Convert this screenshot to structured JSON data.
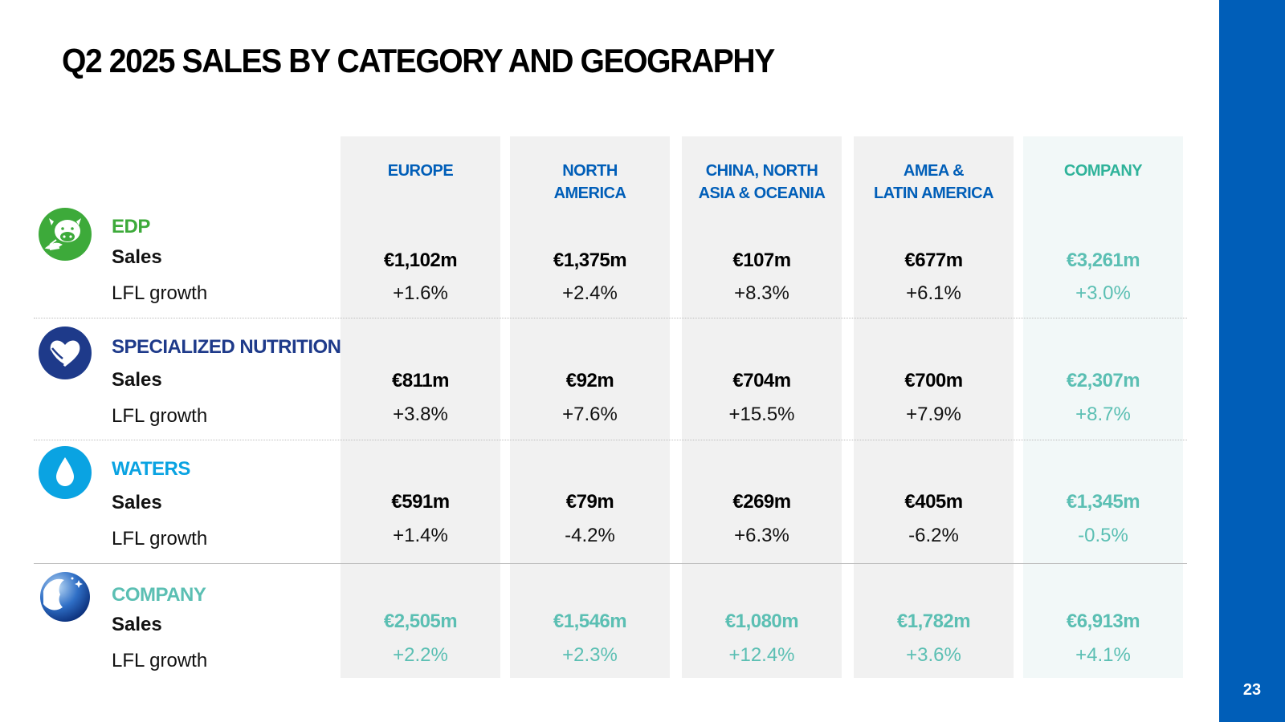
{
  "title": "Q2 2025 SALES BY CATEGORY AND GEOGRAPHY",
  "page_number": "23",
  "colors": {
    "brand_blue": "#005EB8",
    "edp_green": "#3daa3a",
    "nutrition_navy": "#1e3a8a",
    "waters_cyan": "#0aa3e2",
    "company_teal": "#5bbfb3"
  },
  "columns": {
    "europe": "EUROPE",
    "north_america": [
      "NORTH",
      "AMERICA"
    ],
    "china": [
      "CHINA, NORTH",
      "ASIA & OCEANIA"
    ],
    "amea": [
      "AMEA &",
      "LATIN AMERICA"
    ],
    "company": "COMPANY"
  },
  "row_labels": {
    "sales": "Sales",
    "lfl": "LFL growth"
  },
  "rows": [
    {
      "name": "EDP",
      "icon": "cow-icon",
      "sales": [
        "€1,102m",
        "€1,375m",
        "€107m",
        "€677m",
        "€3,261m"
      ],
      "lfl": [
        "+1.6%",
        "+2.4%",
        "+8.3%",
        "+6.1%",
        "+3.0%"
      ]
    },
    {
      "name": "SPECIALIZED NUTRITION",
      "icon": "heart-hand-icon",
      "sales": [
        "€811m",
        "€92m",
        "€704m",
        "€700m",
        "€2,307m"
      ],
      "lfl": [
        "+3.8%",
        "+7.6%",
        "+15.5%",
        "+7.9%",
        "+8.7%"
      ]
    },
    {
      "name": "WATERS",
      "icon": "water-drop-icon",
      "sales": [
        "€591m",
        "€79m",
        "€269m",
        "€405m",
        "€1,345m"
      ],
      "lfl": [
        "+1.4%",
        "-4.2%",
        "+6.3%",
        "-6.2%",
        "-0.5%"
      ]
    },
    {
      "name": "COMPANY",
      "icon": "company-logo-icon",
      "sales": [
        "€2,505m",
        "€1,546m",
        "€1,080m",
        "€1,782m",
        "€6,913m"
      ],
      "lfl": [
        "+2.2%",
        "+2.3%",
        "+12.4%",
        "+3.6%",
        "+4.1%"
      ]
    }
  ]
}
